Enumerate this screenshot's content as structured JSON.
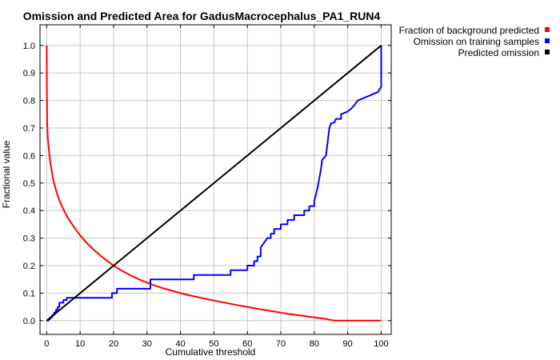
{
  "chart_data": {
    "type": "line",
    "title": "Omission and Predicted Area for GadusMacrocephalus_PA1_RUN4",
    "xlabel": "Cumulative threshold",
    "ylabel": "Fractional value",
    "xlim": [
      -2,
      103
    ],
    "ylim": [
      -0.05,
      1.075
    ],
    "x_ticks": [
      0,
      10,
      20,
      30,
      40,
      50,
      60,
      70,
      80,
      90,
      100
    ],
    "y_ticks": [
      0.0,
      0.1,
      0.2,
      0.3,
      0.4,
      0.5,
      0.6,
      0.7,
      0.8,
      0.9,
      1.0
    ],
    "x_tick_labels": [
      "0",
      "10",
      "20",
      "30",
      "40",
      "50",
      "60",
      "70",
      "80",
      "90",
      "100"
    ],
    "y_tick_labels": [
      "0.0",
      "0.1",
      "0.2",
      "0.3",
      "0.4",
      "0.5",
      "0.6",
      "0.7",
      "0.8",
      "0.9",
      "1.0"
    ],
    "grid": true,
    "legend_position": "outside-top-right",
    "series": [
      {
        "name": "Fraction of background predicted",
        "color": "#ff0000",
        "points": [
          [
            0,
            1.0
          ],
          [
            0.05,
            0.83
          ],
          [
            0.15,
            0.72
          ],
          [
            0.3,
            0.67
          ],
          [
            0.6,
            0.63
          ],
          [
            1,
            0.58
          ],
          [
            2,
            0.51
          ],
          [
            3,
            0.465
          ],
          [
            4,
            0.43
          ],
          [
            5,
            0.405
          ],
          [
            6,
            0.38
          ],
          [
            8,
            0.343
          ],
          [
            10,
            0.31
          ],
          [
            12,
            0.282
          ],
          [
            14,
            0.258
          ],
          [
            16,
            0.237
          ],
          [
            18,
            0.218
          ],
          [
            20,
            0.2
          ],
          [
            22,
            0.185
          ],
          [
            25,
            0.165
          ],
          [
            28,
            0.148
          ],
          [
            30,
            0.138
          ],
          [
            32,
            0.129
          ],
          [
            35,
            0.117
          ],
          [
            38,
            0.107
          ],
          [
            40,
            0.1
          ],
          [
            43,
            0.091
          ],
          [
            45,
            0.086
          ],
          [
            48,
            0.078
          ],
          [
            50,
            0.073
          ],
          [
            53,
            0.066
          ],
          [
            55,
            0.061
          ],
          [
            58,
            0.054
          ],
          [
            60,
            0.05
          ],
          [
            63,
            0.043
          ],
          [
            65,
            0.039
          ],
          [
            68,
            0.033
          ],
          [
            70,
            0.029
          ],
          [
            73,
            0.023
          ],
          [
            75,
            0.02
          ],
          [
            78,
            0.015
          ],
          [
            80,
            0.012
          ],
          [
            83,
            0.007
          ],
          [
            85,
            0.003
          ],
          [
            86,
            0.0
          ],
          [
            100,
            0.0
          ]
        ]
      },
      {
        "name": "Omission on training samples",
        "color": "#0000ff",
        "points": [
          [
            0,
            0
          ],
          [
            0.5,
            0
          ],
          [
            0.5,
            0.005
          ],
          [
            1,
            0.005
          ],
          [
            1,
            0.012
          ],
          [
            1.6,
            0.012
          ],
          [
            1.6,
            0.02
          ],
          [
            2.2,
            0.02
          ],
          [
            2.2,
            0.03
          ],
          [
            2.8,
            0.03
          ],
          [
            2.8,
            0.04
          ],
          [
            3.3,
            0.04
          ],
          [
            3.3,
            0.05
          ],
          [
            3.8,
            0.05
          ],
          [
            3.8,
            0.065
          ],
          [
            5,
            0.065
          ],
          [
            5,
            0.075
          ],
          [
            6,
            0.075
          ],
          [
            6,
            0.083
          ],
          [
            19.5,
            0.083
          ],
          [
            19.5,
            0.1
          ],
          [
            21,
            0.1
          ],
          [
            21,
            0.116
          ],
          [
            31,
            0.116
          ],
          [
            31,
            0.15
          ],
          [
            44,
            0.15
          ],
          [
            44,
            0.166
          ],
          [
            55,
            0.166
          ],
          [
            55,
            0.183
          ],
          [
            60,
            0.183
          ],
          [
            60,
            0.2
          ],
          [
            62,
            0.2
          ],
          [
            62,
            0.216
          ],
          [
            63,
            0.216
          ],
          [
            63,
            0.233
          ],
          [
            64,
            0.233
          ],
          [
            64,
            0.266
          ],
          [
            65,
            0.283
          ],
          [
            66,
            0.3
          ],
          [
            67,
            0.3
          ],
          [
            67,
            0.316
          ],
          [
            68,
            0.316
          ],
          [
            68,
            0.333
          ],
          [
            70,
            0.333
          ],
          [
            70,
            0.35
          ],
          [
            72,
            0.35
          ],
          [
            72,
            0.366
          ],
          [
            74,
            0.366
          ],
          [
            74,
            0.383
          ],
          [
            77,
            0.383
          ],
          [
            77,
            0.4
          ],
          [
            78.5,
            0.4
          ],
          [
            78.5,
            0.416
          ],
          [
            80,
            0.416
          ],
          [
            80,
            0.433
          ],
          [
            81,
            0.483
          ],
          [
            82,
            0.55
          ],
          [
            82.3,
            0.583
          ],
          [
            83.5,
            0.6
          ],
          [
            84,
            0.65
          ],
          [
            84.5,
            0.7
          ],
          [
            85,
            0.716
          ],
          [
            86,
            0.72
          ],
          [
            86.5,
            0.733
          ],
          [
            88,
            0.733
          ],
          [
            88,
            0.75
          ],
          [
            90,
            0.76
          ],
          [
            91,
            0.77
          ],
          [
            92,
            0.783
          ],
          [
            93,
            0.8
          ],
          [
            95,
            0.81
          ],
          [
            97,
            0.82
          ],
          [
            98,
            0.826
          ],
          [
            99,
            0.83
          ],
          [
            99.5,
            0.84
          ],
          [
            100,
            0.85
          ],
          [
            100,
            1.0
          ]
        ]
      },
      {
        "name": "Predicted omission",
        "color": "#000000",
        "points": [
          [
            0,
            0
          ],
          [
            100,
            1
          ]
        ]
      }
    ]
  }
}
